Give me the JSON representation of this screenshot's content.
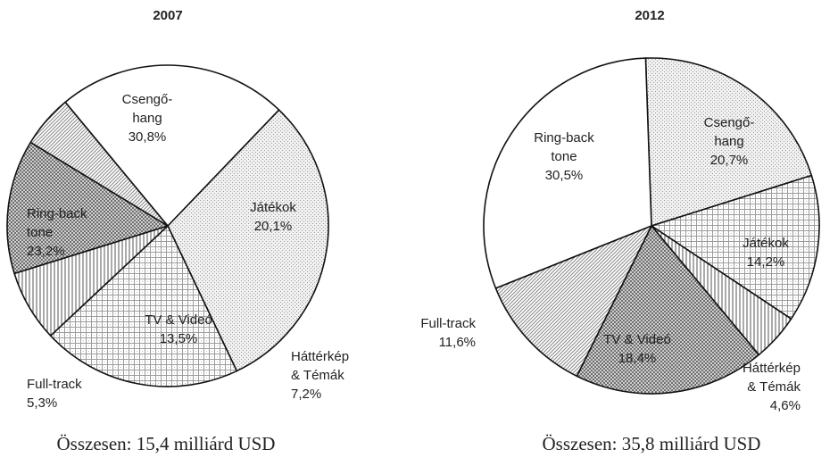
{
  "chart_data": [
    {
      "type": "pie",
      "title": "2007",
      "total_label": "Összesen: 15,4 milliárd USD",
      "slices": [
        {
          "name": "Csengő-hang",
          "label_lines": [
            "Csengő-",
            "hang"
          ],
          "value": 30.8,
          "value_label": "30,8%",
          "pattern": "dots"
        },
        {
          "name": "Játékok",
          "label_lines": [
            "Játékok"
          ],
          "value": 20.1,
          "value_label": "20,1%",
          "pattern": "grid"
        },
        {
          "name": "Háttérkép & Témák",
          "label_lines": [
            "Háttérkép",
            "& Témák"
          ],
          "value": 7.2,
          "value_label": "7,2%",
          "pattern": "vlines"
        },
        {
          "name": "TV & Videó",
          "label_lines": [
            "TV & Videó"
          ],
          "value": 13.5,
          "value_label": "13,5%",
          "pattern": "check"
        },
        {
          "name": "Full-track",
          "label_lines": [
            "Full-track"
          ],
          "value": 5.3,
          "value_label": "5,3%",
          "pattern": "diag"
        },
        {
          "name": "Ring-back tone",
          "label_lines": [
            "Ring-back",
            "tone"
          ],
          "value": 23.2,
          "value_label": "23,2%",
          "pattern": "white"
        }
      ]
    },
    {
      "type": "pie",
      "title": "2012",
      "total_label": "Összesen: 35,8 milliárd USD",
      "slices": [
        {
          "name": "Csengő-hang",
          "label_lines": [
            "Csengő-",
            "hang"
          ],
          "value": 20.7,
          "value_label": "20,7%",
          "pattern": "dots"
        },
        {
          "name": "Játékok",
          "label_lines": [
            "Játékok"
          ],
          "value": 14.2,
          "value_label": "14,2%",
          "pattern": "grid"
        },
        {
          "name": "Háttérkép & Témák",
          "label_lines": [
            "Háttérkép",
            "& Témák"
          ],
          "value": 4.6,
          "value_label": "4,6%",
          "pattern": "vlines"
        },
        {
          "name": "TV & Videó",
          "label_lines": [
            "TV & Videó"
          ],
          "value": 18.4,
          "value_label": "18,4%",
          "pattern": "check"
        },
        {
          "name": "Full-track",
          "label_lines": [
            "Full-track"
          ],
          "value": 11.6,
          "value_label": "11,6%",
          "pattern": "diag"
        },
        {
          "name": "Ring-back tone",
          "label_lines": [
            "Ring-back",
            "tone"
          ],
          "value": 30.5,
          "value_label": "30,5%",
          "pattern": "white"
        }
      ]
    }
  ]
}
